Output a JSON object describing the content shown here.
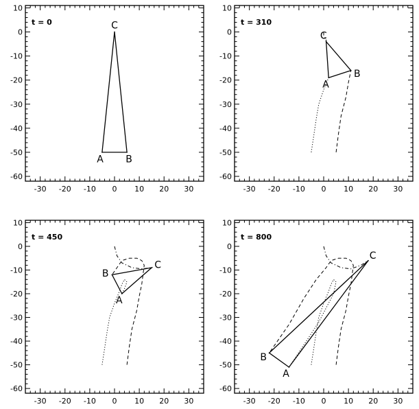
{
  "chart_data": [
    {
      "type": "line",
      "time_label": "t = 0",
      "xlim": [
        -36,
        36
      ],
      "ylim": [
        -62,
        11
      ],
      "xticks": [
        -30,
        -20,
        -10,
        0,
        10,
        20,
        30
      ],
      "yticks": [
        10,
        0,
        -10,
        -20,
        -30,
        -40,
        -50,
        -60
      ],
      "xtick_labels": [
        "-30",
        "-20",
        "-10",
        "0",
        "10",
        "20",
        "30"
      ],
      "ytick_labels": [
        "10",
        "0",
        "-10",
        "-20",
        "-30",
        "-40",
        "-50",
        "-60"
      ],
      "vertices": [
        {
          "name": "A",
          "x": -5,
          "y": -50
        },
        {
          "name": "B",
          "x": 5,
          "y": -50
        },
        {
          "name": "C",
          "x": 0,
          "y": 0
        }
      ],
      "paths": []
    },
    {
      "type": "line",
      "time_label": "t = 310",
      "xlim": [
        -36,
        36
      ],
      "ylim": [
        -62,
        11
      ],
      "xticks": [
        -30,
        -20,
        -10,
        0,
        10,
        20,
        30
      ],
      "yticks": [
        10,
        0,
        -10,
        -20,
        -30,
        -40,
        -50,
        -60
      ],
      "xtick_labels": [
        "-30",
        "-20",
        "-10",
        "0",
        "10",
        "20",
        "30"
      ],
      "ytick_labels": [
        "10",
        "0",
        "-10",
        "-20",
        "-30",
        "-40",
        "-50",
        "-60"
      ],
      "vertices": [
        {
          "name": "A",
          "x": 2,
          "y": -19
        },
        {
          "name": "B",
          "x": 11,
          "y": -16
        },
        {
          "name": "C",
          "x": 1,
          "y": -4
        }
      ],
      "paths": [
        {
          "style": "dotted",
          "points": [
            [
              -5,
              -50
            ],
            [
              -4,
              -43
            ],
            [
              -3,
              -36
            ],
            [
              -2,
              -30
            ],
            [
              0,
              -24
            ],
            [
              2,
              -19
            ]
          ]
        },
        {
          "style": "dashed",
          "points": [
            [
              5,
              -50
            ],
            [
              6,
              -42
            ],
            [
              7,
              -35
            ],
            [
              9,
              -27
            ],
            [
              10,
              -21
            ],
            [
              11,
              -16
            ]
          ]
        },
        {
          "style": "dashdot",
          "points": [
            [
              0,
              0
            ],
            [
              0,
              -1.5
            ],
            [
              1,
              -3
            ],
            [
              1,
              -4
            ]
          ]
        }
      ]
    },
    {
      "type": "line",
      "time_label": "t = 450",
      "xlim": [
        -36,
        36
      ],
      "ylim": [
        -62,
        11
      ],
      "xticks": [
        -30,
        -20,
        -10,
        0,
        10,
        20,
        30
      ],
      "yticks": [
        10,
        0,
        -10,
        -20,
        -30,
        -40,
        -50,
        -60
      ],
      "xtick_labels": [
        "-30",
        "-20",
        "-10",
        "0",
        "10",
        "20",
        "30"
      ],
      "ytick_labels": [
        "10",
        "0",
        "-10",
        "-20",
        "-30",
        "-40",
        "-50",
        "-60"
      ],
      "vertices": [
        {
          "name": "A",
          "x": 3,
          "y": -20
        },
        {
          "name": "B",
          "x": -1,
          "y": -12
        },
        {
          "name": "C",
          "x": 15,
          "y": -9
        }
      ],
      "paths": [
        {
          "style": "dotted",
          "points": [
            [
              -5,
              -50
            ],
            [
              -4,
              -43
            ],
            [
              -3,
              -36
            ],
            [
              -2,
              -30
            ],
            [
              0,
              -24
            ],
            [
              2,
              -19
            ],
            [
              3,
              -16
            ],
            [
              4,
              -14
            ],
            [
              5,
              -15
            ],
            [
              4,
              -18
            ],
            [
              3,
              -20
            ]
          ]
        },
        {
          "style": "dashed",
          "points": [
            [
              5,
              -50
            ],
            [
              6,
              -42
            ],
            [
              7,
              -35
            ],
            [
              9,
              -27
            ],
            [
              10,
              -21
            ],
            [
              11,
              -16
            ],
            [
              12,
              -8
            ],
            [
              11,
              -6
            ],
            [
              9,
              -5
            ],
            [
              6,
              -5
            ],
            [
              3,
              -6
            ],
            [
              1,
              -9
            ],
            [
              -1,
              -12
            ]
          ]
        },
        {
          "style": "dashdot",
          "points": [
            [
              0,
              0
            ],
            [
              1,
              -4
            ],
            [
              3,
              -7
            ],
            [
              7,
              -9
            ],
            [
              11,
              -9.5
            ],
            [
              15,
              -9
            ]
          ]
        }
      ]
    },
    {
      "type": "line",
      "time_label": "t = 800",
      "xlim": [
        -36,
        36
      ],
      "ylim": [
        -62,
        11
      ],
      "xticks": [
        -30,
        -20,
        -10,
        0,
        10,
        20,
        30
      ],
      "yticks": [
        10,
        0,
        -10,
        -20,
        -30,
        -40,
        -50,
        -60
      ],
      "xtick_labels": [
        "-30",
        "-20",
        "-10",
        "0",
        "10",
        "20",
        "30"
      ],
      "ytick_labels": [
        "10",
        "0",
        "-10",
        "-20",
        "-30",
        "-40",
        "-50",
        "-60"
      ],
      "vertices": [
        {
          "name": "A",
          "x": -14,
          "y": -51
        },
        {
          "name": "B",
          "x": -22,
          "y": -45
        },
        {
          "name": "C",
          "x": 18,
          "y": -6
        }
      ],
      "paths": [
        {
          "style": "dotted",
          "points": [
            [
              -5,
              -50
            ],
            [
              -4,
              -43
            ],
            [
              -3,
              -36
            ],
            [
              -2,
              -30
            ],
            [
              0,
              -24
            ],
            [
              2,
              -19
            ],
            [
              3,
              -16
            ],
            [
              4,
              -14
            ],
            [
              5,
              -15
            ],
            [
              4,
              -20
            ],
            [
              2,
              -24
            ],
            [
              -2,
              -32
            ],
            [
              -7,
              -40
            ],
            [
              -14,
              -51
            ]
          ]
        },
        {
          "style": "dashed",
          "points": [
            [
              5,
              -50
            ],
            [
              6,
              -42
            ],
            [
              7,
              -35
            ],
            [
              9,
              -27
            ],
            [
              10,
              -21
            ],
            [
              11,
              -16
            ],
            [
              12,
              -8
            ],
            [
              11,
              -6
            ],
            [
              9,
              -5
            ],
            [
              6,
              -5
            ],
            [
              3,
              -6
            ],
            [
              1,
              -9
            ],
            [
              -3,
              -14
            ],
            [
              -8,
              -22
            ],
            [
              -14,
              -33
            ],
            [
              -22,
              -45
            ]
          ]
        },
        {
          "style": "dashdot",
          "points": [
            [
              0,
              0
            ],
            [
              1,
              -4
            ],
            [
              3,
              -7
            ],
            [
              7,
              -9
            ],
            [
              11,
              -9.5
            ],
            [
              15,
              -8
            ],
            [
              18,
              -6
            ]
          ]
        }
      ]
    }
  ]
}
